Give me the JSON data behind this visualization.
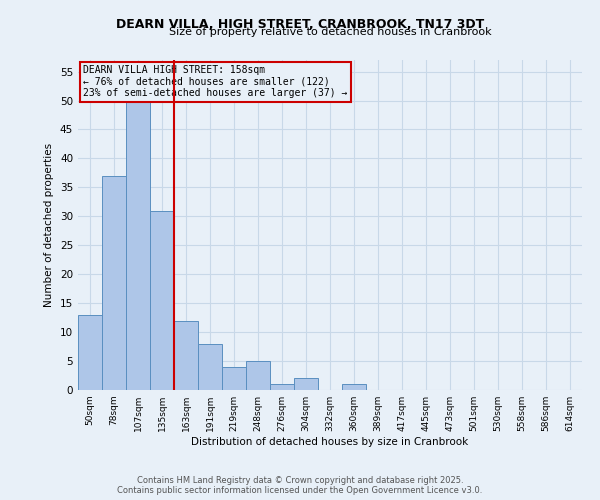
{
  "title_line1": "DEARN VILLA, HIGH STREET, CRANBROOK, TN17 3DT",
  "title_line2": "Size of property relative to detached houses in Cranbrook",
  "xlabel": "Distribution of detached houses by size in Cranbrook",
  "ylabel": "Number of detached properties",
  "categories": [
    "50sqm",
    "78sqm",
    "107sqm",
    "135sqm",
    "163sqm",
    "191sqm",
    "219sqm",
    "248sqm",
    "276sqm",
    "304sqm",
    "332sqm",
    "360sqm",
    "389sqm",
    "417sqm",
    "445sqm",
    "473sqm",
    "501sqm",
    "530sqm",
    "558sqm",
    "586sqm",
    "614sqm"
  ],
  "values": [
    13,
    37,
    52,
    31,
    12,
    8,
    4,
    5,
    1,
    2,
    0,
    1,
    0,
    0,
    0,
    0,
    0,
    0,
    0,
    0,
    0
  ],
  "bar_color": "#aec6e8",
  "bar_edge_color": "#5a8fc0",
  "vline_x_index": 3.5,
  "vline_color": "#cc0000",
  "annotation_text": "DEARN VILLA HIGH STREET: 158sqm\n← 76% of detached houses are smaller (122)\n23% of semi-detached houses are larger (37) →",
  "annotation_box_edge": "#cc0000",
  "ylim": [
    0,
    57
  ],
  "yticks": [
    0,
    5,
    10,
    15,
    20,
    25,
    30,
    35,
    40,
    45,
    50,
    55
  ],
  "grid_color": "#c8d8e8",
  "bg_color": "#e8f0f8",
  "footer_line1": "Contains HM Land Registry data © Crown copyright and database right 2025.",
  "footer_line2": "Contains public sector information licensed under the Open Government Licence v3.0."
}
